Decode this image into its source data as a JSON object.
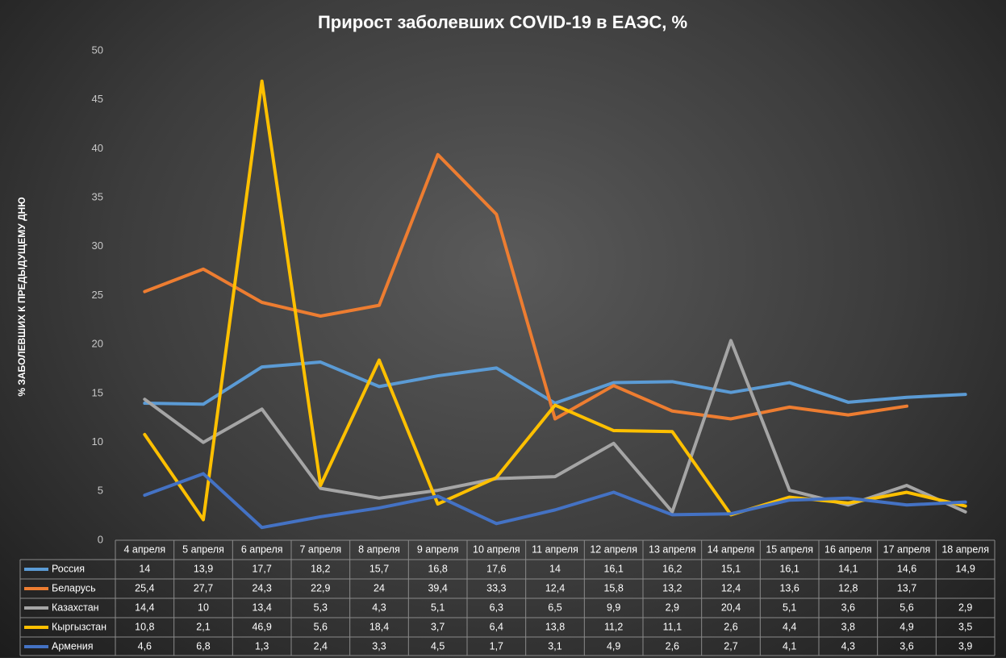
{
  "chart_data": {
    "type": "line",
    "title": "Прирост заболевших COVID-19 в ЕАЭС, %",
    "ylabel": "% ЗАБОЛЕВШИХ К ПРЕДЫДУЩЕМУ ДНЮ",
    "categories": [
      "4 апреля",
      "5 апреля",
      "6 апреля",
      "7 апреля",
      "8 апреля",
      "9 апреля",
      "10 апреля",
      "11 апреля",
      "12 апреля",
      "13 апреля",
      "14 апреля",
      "15 апреля",
      "16 апреля",
      "17 апреля",
      "18 апреля"
    ],
    "series": [
      {
        "name": "Россия",
        "color": "#5b9bd5",
        "values": [
          14,
          13.9,
          17.7,
          18.2,
          15.7,
          16.8,
          17.6,
          14,
          16.1,
          16.2,
          15.1,
          16.1,
          14.1,
          14.6,
          14.9
        ],
        "value_labels": [
          "14",
          "13,9",
          "17,7",
          "18,2",
          "15,7",
          "16,8",
          "17,6",
          "14",
          "16,1",
          "16,2",
          "15,1",
          "16,1",
          "14,1",
          "14,6",
          "14,9"
        ]
      },
      {
        "name": "Беларусь",
        "color": "#ed7d31",
        "values": [
          25.4,
          27.7,
          24.3,
          22.9,
          24,
          39.4,
          33.3,
          12.4,
          15.8,
          13.2,
          12.4,
          13.6,
          12.8,
          13.7,
          null
        ],
        "value_labels": [
          "25,4",
          "27,7",
          "24,3",
          "22,9",
          "24",
          "39,4",
          "33,3",
          "12,4",
          "15,8",
          "13,2",
          "12,4",
          "13,6",
          "12,8",
          "13,7",
          null
        ]
      },
      {
        "name": "Казахстан",
        "color": "#a5a5a5",
        "values": [
          14.4,
          10,
          13.4,
          5.3,
          4.3,
          5.1,
          6.3,
          6.5,
          9.9,
          2.9,
          20.4,
          5.1,
          3.6,
          5.6,
          2.9
        ],
        "value_labels": [
          "14,4",
          "10",
          "13,4",
          "5,3",
          "4,3",
          "5,1",
          "6,3",
          "6,5",
          "9,9",
          "2,9",
          "20,4",
          "5,1",
          "3,6",
          "5,6",
          "2,9"
        ]
      },
      {
        "name": "Кыргызстан",
        "color": "#ffc000",
        "values": [
          10.8,
          2.1,
          46.9,
          5.6,
          18.4,
          3.7,
          6.4,
          13.8,
          11.2,
          11.1,
          2.6,
          4.4,
          3.8,
          4.9,
          3.5
        ],
        "value_labels": [
          "10,8",
          "2,1",
          "46,9",
          "5,6",
          "18,4",
          "3,7",
          "6,4",
          "13,8",
          "11,2",
          "11,1",
          "2,6",
          "4,4",
          "3,8",
          "4,9",
          "3,5"
        ]
      },
      {
        "name": "Армения",
        "color": "#4472c4",
        "values": [
          4.6,
          6.8,
          1.3,
          2.4,
          3.3,
          4.5,
          1.7,
          3.1,
          4.9,
          2.6,
          2.7,
          4.1,
          4.3,
          3.6,
          3.9
        ],
        "value_labels": [
          "4,6",
          "6,8",
          "1,3",
          "2,4",
          "3,3",
          "4,5",
          "1,7",
          "3,1",
          "4,9",
          "2,6",
          "2,7",
          "4,1",
          "4,3",
          "3,6",
          "3,9"
        ]
      }
    ],
    "ylim": [
      0,
      50
    ],
    "yticks": [
      0,
      5,
      10,
      15,
      20,
      25,
      30,
      35,
      40,
      45,
      50
    ],
    "grid": false
  }
}
